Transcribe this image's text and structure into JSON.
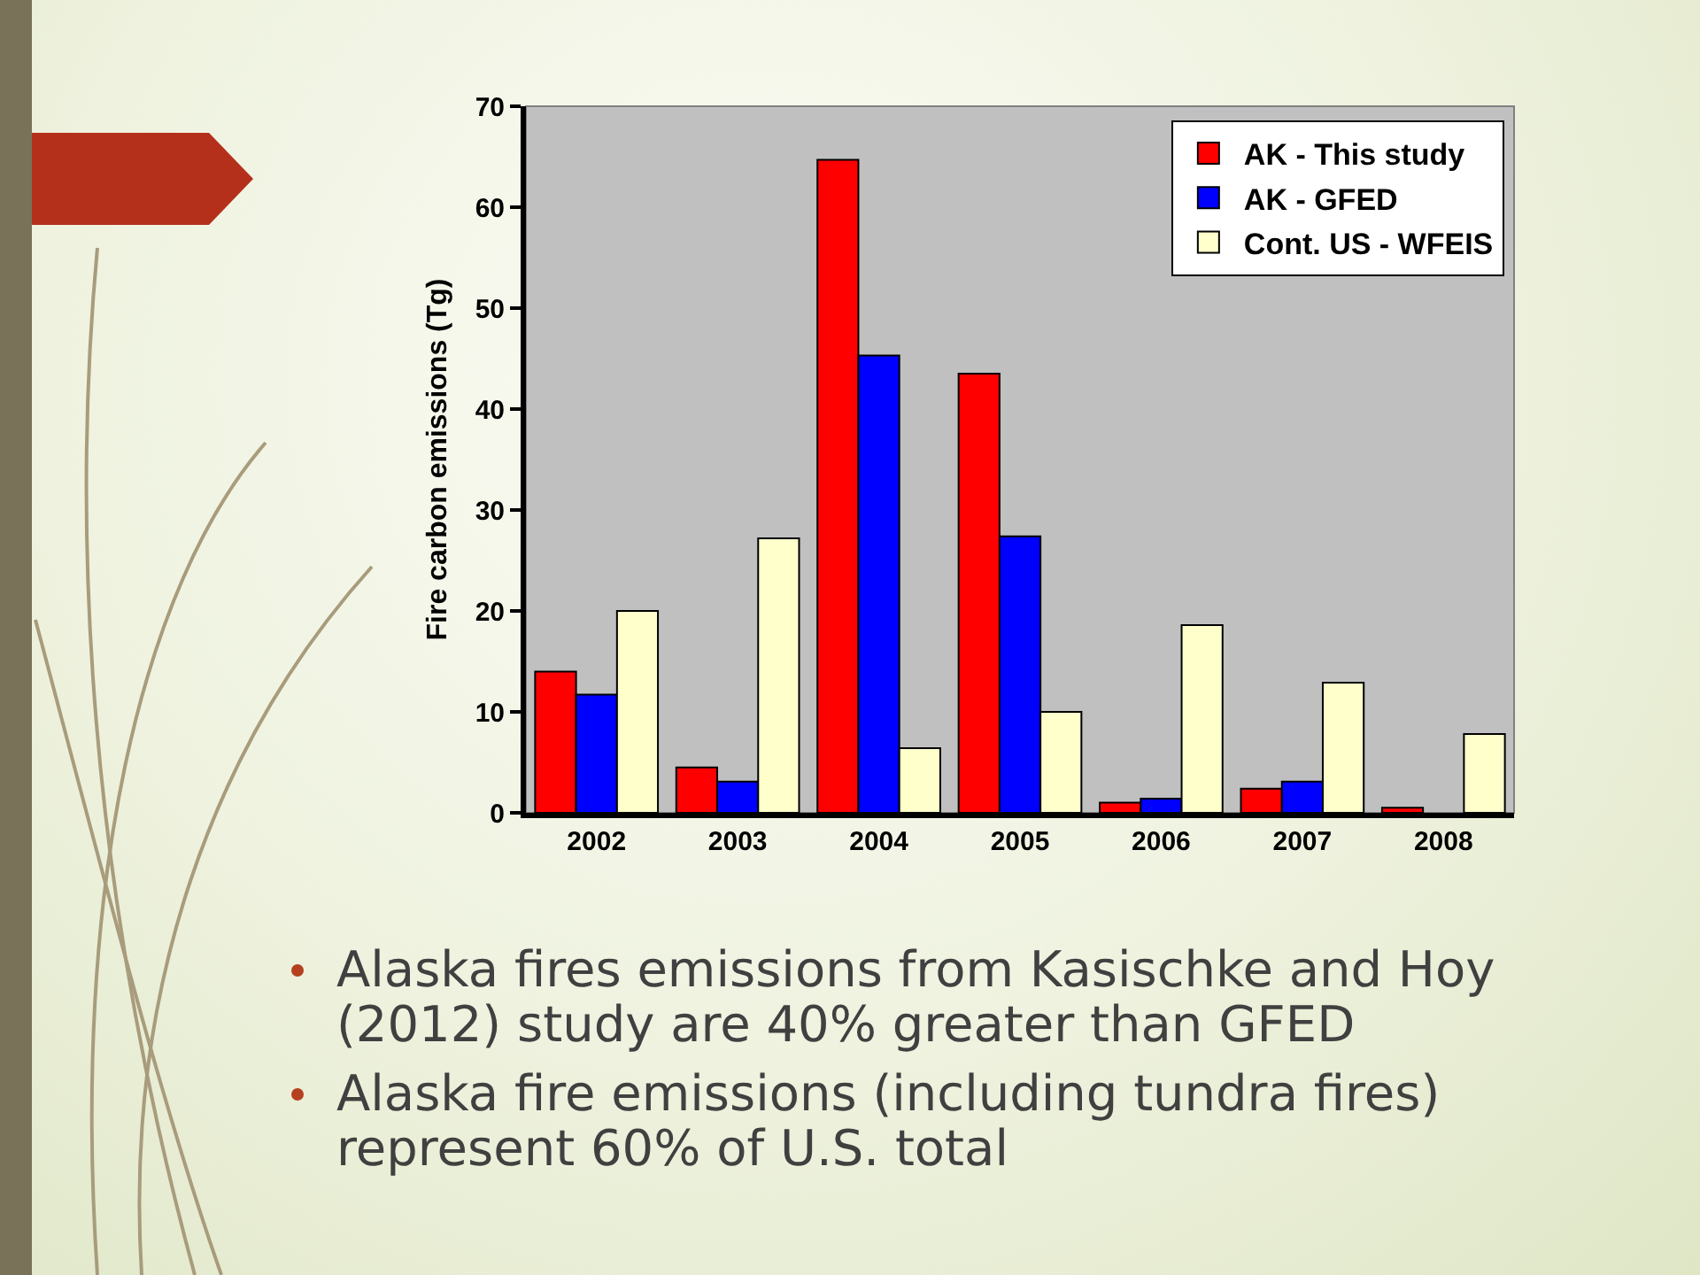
{
  "chart_data": {
    "type": "bar",
    "ylabel": "Fire carbon emissions (Tg)",
    "categories": [
      "2002",
      "2003",
      "2004",
      "2005",
      "2006",
      "2007",
      "2008"
    ],
    "series": [
      {
        "name": "AK - This study",
        "color": "#ff0000",
        "values": [
          14.0,
          4.5,
          64.7,
          43.5,
          1.0,
          2.4,
          0.5
        ]
      },
      {
        "name": "AK - GFED",
        "color": "#0000ff",
        "values": [
          11.7,
          3.1,
          45.3,
          27.4,
          1.4,
          3.1,
          null
        ]
      },
      {
        "name": "Cont. US - WFEIS",
        "color": "#ffffcc",
        "values": [
          20.0,
          27.2,
          6.4,
          10.0,
          18.6,
          12.9,
          7.8
        ]
      }
    ],
    "ylim": [
      0,
      70
    ],
    "yticks": [
      0,
      10,
      20,
      30,
      40,
      50,
      60,
      70
    ],
    "grid": false,
    "legend": "top right",
    "annotations": [
      "Alaska fires emissions from Kasischke and Hoy (2012) study are 40% greater than GFED",
      "Alaska fire emissions (including tundra fires) represent 60% of U.S. total"
    ]
  }
}
